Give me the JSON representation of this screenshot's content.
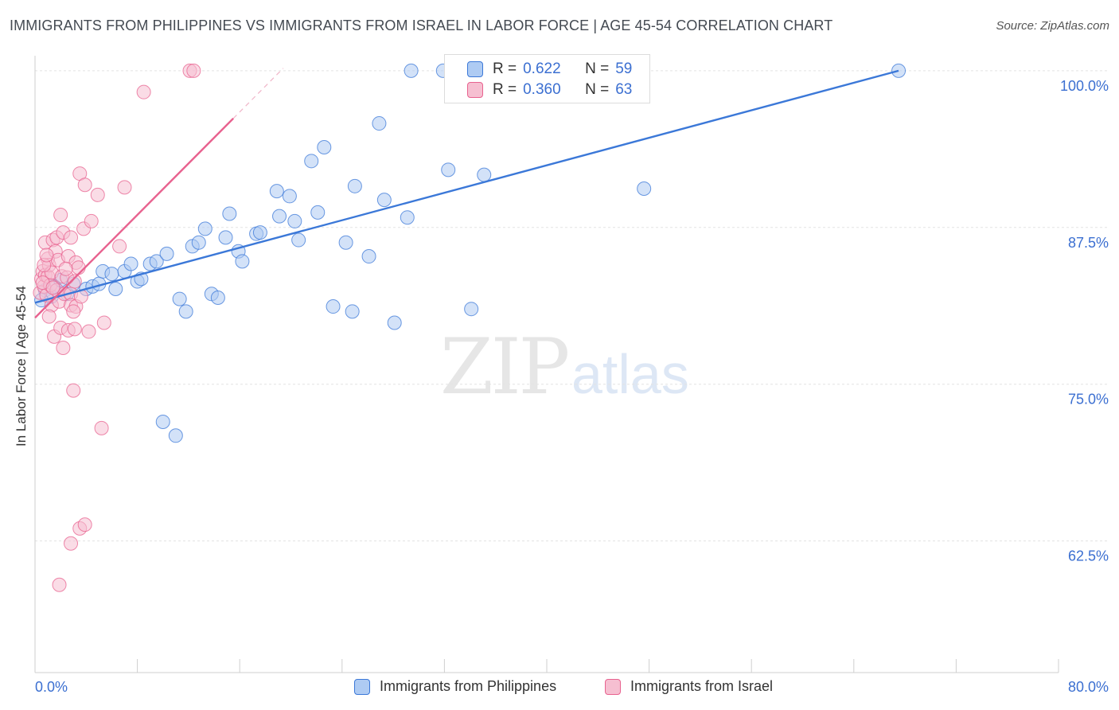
{
  "title": "IMMIGRANTS FROM PHILIPPINES VS IMMIGRANTS FROM ISRAEL IN LABOR FORCE | AGE 45-54 CORRELATION CHART",
  "source": "Source: ZipAtlas.com",
  "watermark": {
    "zip": "ZIP",
    "atlas": "atlas"
  },
  "colors": {
    "blue": "#3b78d8",
    "blue_fill": "#aecbf3",
    "pink": "#e8628f",
    "pink_fill": "#f6bfd1",
    "axis_text": "#3b6fd1"
  },
  "legend_box": {
    "rows": [
      {
        "r_label": "R =",
        "r_value": "0.622",
        "n_label": "N =",
        "n_value": "59"
      },
      {
        "r_label": "R =",
        "r_value": "0.360",
        "n_label": "N =",
        "n_value": "63"
      }
    ]
  },
  "legend": {
    "items": [
      "Immigrants from Philippines",
      "Immigrants from Israel"
    ]
  },
  "chart_data": {
    "type": "scatter",
    "title": "IMMIGRANTS FROM PHILIPPINES VS IMMIGRANTS FROM ISRAEL IN LABOR FORCE | AGE 45-54 CORRELATION CHART",
    "xlabel": "",
    "ylabel": "In Labor Force | Age 45-54",
    "xlim": [
      0,
      80
    ],
    "ylim": [
      52,
      101.2
    ],
    "x_tick_labels": [
      "0.0%",
      "80.0%"
    ],
    "y_ticks": [
      62.5,
      75.0,
      87.5,
      100.0
    ],
    "y_tick_labels": [
      "62.5%",
      "75.0%",
      "87.5%",
      "100.0%"
    ],
    "grid": true,
    "series": [
      {
        "name": "Immigrants from Philippines",
        "color": "#3b78d8",
        "R": 0.622,
        "N": 59,
        "trend": {
          "x": [
            0.0,
            67.5
          ],
          "y": [
            81.5,
            100.0
          ]
        },
        "points": [
          [
            0.8,
            82.5
          ],
          [
            1.3,
            82.0
          ],
          [
            1.5,
            82.8
          ],
          [
            2.0,
            83.3
          ],
          [
            2.5,
            82.2
          ],
          [
            3.0,
            83.0
          ],
          [
            4.0,
            82.6
          ],
          [
            4.5,
            82.8
          ],
          [
            5.0,
            83.0
          ],
          [
            5.3,
            84.0
          ],
          [
            6.0,
            83.8
          ],
          [
            6.3,
            82.6
          ],
          [
            7.0,
            84.0
          ],
          [
            7.5,
            84.6
          ],
          [
            8.0,
            83.2
          ],
          [
            8.3,
            83.4
          ],
          [
            9.0,
            84.6
          ],
          [
            9.5,
            84.8
          ],
          [
            10.3,
            85.4
          ],
          [
            11.3,
            81.8
          ],
          [
            11.8,
            80.8
          ],
          [
            12.3,
            86.0
          ],
          [
            12.8,
            86.3
          ],
          [
            13.3,
            87.4
          ],
          [
            13.8,
            82.2
          ],
          [
            14.3,
            81.9
          ],
          [
            14.9,
            86.7
          ],
          [
            15.2,
            88.6
          ],
          [
            15.9,
            85.6
          ],
          [
            16.2,
            84.8
          ],
          [
            17.3,
            87.0
          ],
          [
            17.6,
            87.1
          ],
          [
            18.9,
            90.4
          ],
          [
            19.1,
            88.4
          ],
          [
            19.9,
            90.0
          ],
          [
            20.3,
            88.0
          ],
          [
            20.6,
            86.5
          ],
          [
            21.6,
            92.8
          ],
          [
            22.1,
            88.7
          ],
          [
            22.6,
            93.9
          ],
          [
            23.3,
            81.2
          ],
          [
            24.3,
            86.3
          ],
          [
            25.0,
            90.8
          ],
          [
            24.8,
            80.8
          ],
          [
            26.1,
            85.2
          ],
          [
            26.9,
            95.8
          ],
          [
            27.3,
            89.7
          ],
          [
            28.1,
            79.9
          ],
          [
            29.1,
            88.3
          ],
          [
            29.4,
            100.0
          ],
          [
            31.9,
            100.0
          ],
          [
            32.3,
            92.1
          ],
          [
            34.1,
            81.0
          ],
          [
            35.1,
            91.7
          ],
          [
            47.6,
            90.6
          ],
          [
            10.0,
            72.0
          ],
          [
            11.0,
            70.9
          ],
          [
            67.5,
            100.0
          ],
          [
            0.5,
            81.7
          ]
        ]
      },
      {
        "name": "Immigrants from Israel",
        "color": "#e8628f",
        "R": 0.36,
        "N": 63,
        "trend": {
          "x": [
            0.0,
            15.5
          ],
          "y": [
            80.3,
            96.2
          ]
        },
        "trend_dashed": {
          "x": [
            15.5,
            19.4
          ],
          "y": [
            96.2,
            100.2
          ]
        },
        "points": [
          [
            0.4,
            82.3
          ],
          [
            0.5,
            83.4
          ],
          [
            0.6,
            84.0
          ],
          [
            0.7,
            82.8
          ],
          [
            0.8,
            83.7
          ],
          [
            0.8,
            86.3
          ],
          [
            0.9,
            82.1
          ],
          [
            1.0,
            85.0
          ],
          [
            1.0,
            83.6
          ],
          [
            1.1,
            84.5
          ],
          [
            1.2,
            82.9
          ],
          [
            1.3,
            83.9
          ],
          [
            1.3,
            81.3
          ],
          [
            1.4,
            86.5
          ],
          [
            1.5,
            78.8
          ],
          [
            1.6,
            85.6
          ],
          [
            1.7,
            82.5
          ],
          [
            1.7,
            86.7
          ],
          [
            1.8,
            84.9
          ],
          [
            1.9,
            81.6
          ],
          [
            2.0,
            79.5
          ],
          [
            2.0,
            88.5
          ],
          [
            2.1,
            83.6
          ],
          [
            2.2,
            87.1
          ],
          [
            2.2,
            77.9
          ],
          [
            2.3,
            82.2
          ],
          [
            2.5,
            83.5
          ],
          [
            2.6,
            79.3
          ],
          [
            2.6,
            85.2
          ],
          [
            2.8,
            82.2
          ],
          [
            2.8,
            81.3
          ],
          [
            2.8,
            86.7
          ],
          [
            3.0,
            74.5
          ],
          [
            3.1,
            83.2
          ],
          [
            3.1,
            79.4
          ],
          [
            3.2,
            84.7
          ],
          [
            3.2,
            81.2
          ],
          [
            3.4,
            84.3
          ],
          [
            3.5,
            91.8
          ],
          [
            3.6,
            82.0
          ],
          [
            3.8,
            87.4
          ],
          [
            3.9,
            90.9
          ],
          [
            4.2,
            79.2
          ],
          [
            4.4,
            88.0
          ],
          [
            4.9,
            90.1
          ],
          [
            5.2,
            71.5
          ],
          [
            5.4,
            79.9
          ],
          [
            6.6,
            86.0
          ],
          [
            7.0,
            90.7
          ],
          [
            8.5,
            98.3
          ],
          [
            12.1,
            100.0
          ],
          [
            12.4,
            100.0
          ],
          [
            3.5,
            63.5
          ],
          [
            3.9,
            63.8
          ],
          [
            2.8,
            62.3
          ],
          [
            1.9,
            59.0
          ],
          [
            0.6,
            83.1
          ],
          [
            0.7,
            84.5
          ],
          [
            0.9,
            85.3
          ],
          [
            1.4,
            82.7
          ],
          [
            2.4,
            84.2
          ],
          [
            3.0,
            80.8
          ],
          [
            1.1,
            80.4
          ]
        ]
      }
    ]
  }
}
